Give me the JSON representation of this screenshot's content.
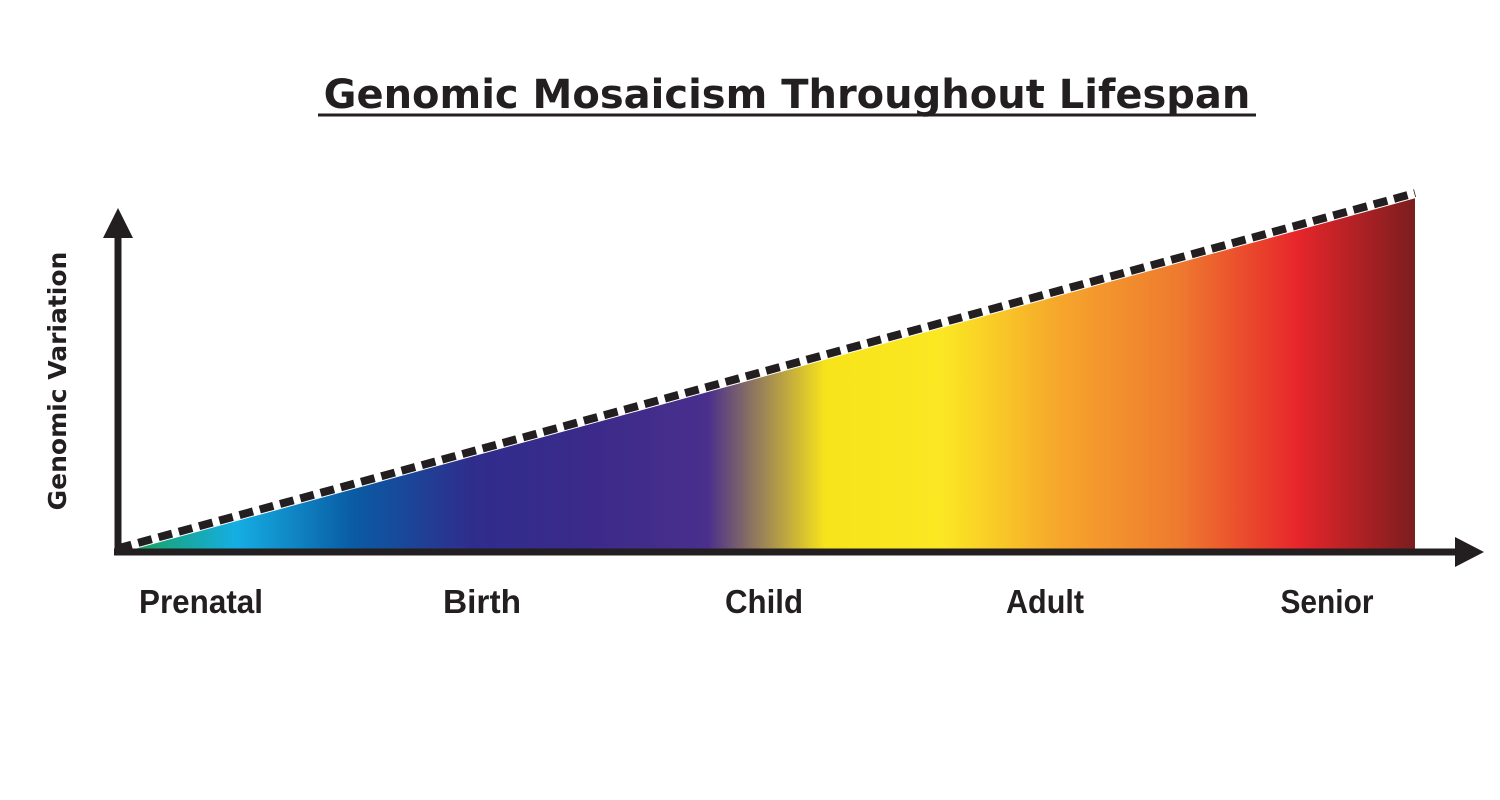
{
  "chart_data": {
    "type": "area",
    "title": "Genomic Mosaicism Throughout Lifespan",
    "xlabel": "",
    "ylabel": "Genomic Variation",
    "categories": [
      "Prenatal",
      "Birth",
      "Child",
      "Adult",
      "Senior"
    ],
    "series": [
      {
        "values": [
          0.06,
          0.29,
          0.52,
          0.74,
          0.97
        ],
        "line_style": "dashed"
      }
    ],
    "ylim": [
      0,
      1
    ],
    "grid": false,
    "legend": "none",
    "y_tick_labels": false,
    "gradient_colors": [
      "#1aa04a",
      "#15aee3",
      "#0a5ba3",
      "#2f2d8c",
      "#3b2a8a",
      "#4a2f8c",
      "#f8e41a",
      "#fbe723",
      "#f6a52c",
      "#ee7a2f",
      "#e7262b",
      "#7b1d1e"
    ]
  },
  "colors": {
    "axis": "#231f20",
    "text": "#231f20",
    "background": "#ffffff"
  }
}
